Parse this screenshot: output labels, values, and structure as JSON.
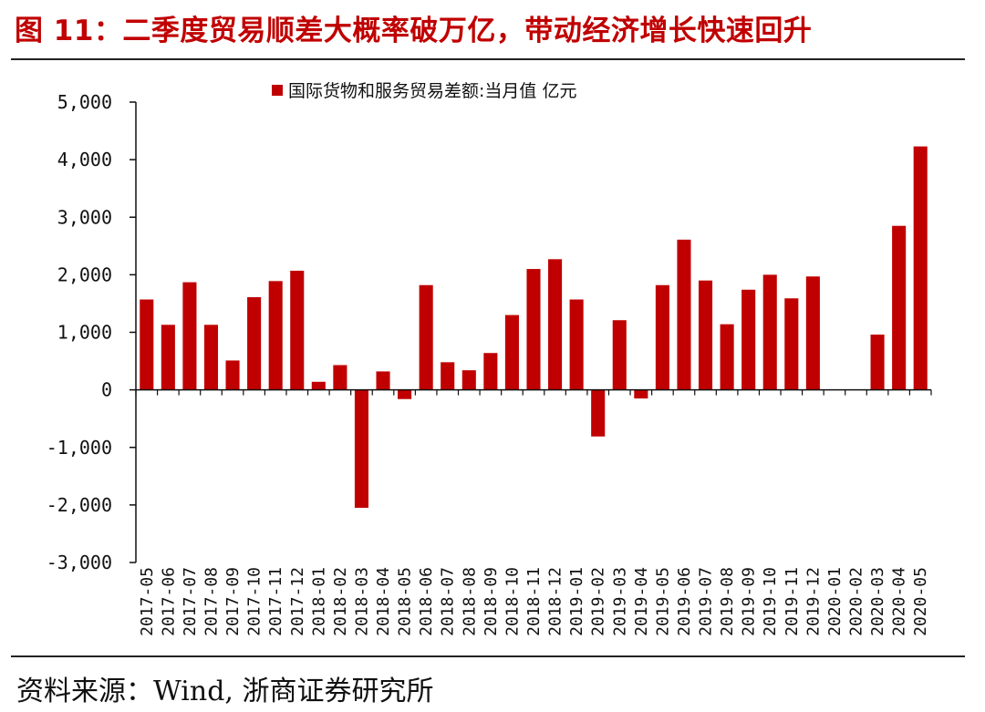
{
  "header": {
    "title": "图 11：二季度贸易顺差大概率破万亿，带动经济增长快速回升"
  },
  "footer": {
    "source": "资料来源：Wind, 浙商证券研究所"
  },
  "chart_data": {
    "type": "bar",
    "legend": {
      "position": "top-center",
      "entries": [
        "国际货物和服务贸易差额:当月值 亿元"
      ]
    },
    "series": [
      {
        "name": "国际货物和服务贸易差额:当月值 亿元",
        "color": "#c00000",
        "values": [
          1570,
          1130,
          1870,
          1130,
          510,
          1610,
          1890,
          2070,
          140,
          430,
          -2050,
          320,
          -160,
          1820,
          480,
          340,
          640,
          1300,
          2100,
          2270,
          1570,
          -810,
          1210,
          -150,
          1820,
          2610,
          1900,
          1140,
          1740,
          2000,
          1590,
          1970,
          null,
          null,
          960,
          2850,
          4230
        ]
      }
    ],
    "categories": [
      "2017-05",
      "2017-06",
      "2017-07",
      "2017-08",
      "2017-09",
      "2017-10",
      "2017-11",
      "2017-12",
      "2018-01",
      "2018-02",
      "2018-03",
      "2018-04",
      "2018-05",
      "2018-06",
      "2018-07",
      "2018-08",
      "2018-09",
      "2018-10",
      "2018-11",
      "2018-12",
      "2019-01",
      "2019-02",
      "2019-03",
      "2019-04",
      "2019-05",
      "2019-06",
      "2019-07",
      "2019-08",
      "2019-09",
      "2019-10",
      "2019-11",
      "2019-12",
      "2020-01",
      "2020-02",
      "2020-03",
      "2020-04",
      "2020-05"
    ],
    "yticks": [
      5000,
      4000,
      3000,
      2000,
      1000,
      0,
      -1000,
      -2000,
      -3000
    ],
    "ytick_labels": [
      "5,000",
      "4,000",
      "3,000",
      "2,000",
      "1,000",
      "0",
      "-1,000",
      "-2,000",
      "-3,000"
    ],
    "ylim": [
      -3000,
      5000
    ],
    "grid": false
  }
}
